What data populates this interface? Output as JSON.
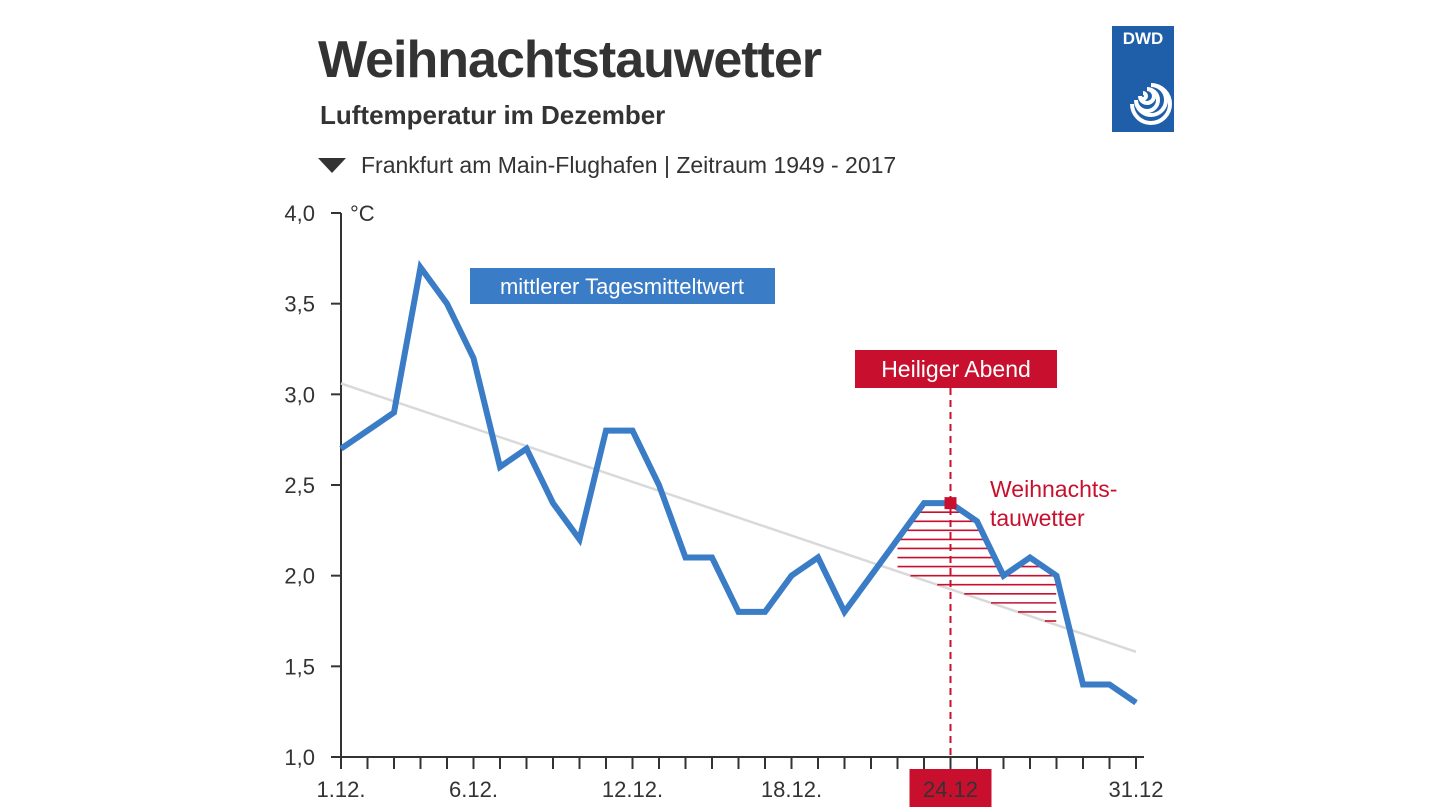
{
  "header": {
    "title": "Weihnachtstauwetter",
    "subtitle": "Luftemperatur im Dezember",
    "location": "Frankfurt am Main-Flughafen | Zeitraum 1949 - 2017",
    "logo_text": "DWD"
  },
  "colors": {
    "series": "#3a7cc6",
    "trend": "#d9d9d9",
    "highlight": "#c8102e",
    "text": "#333333",
    "logo": "#1f5ea8"
  },
  "chart_data": {
    "type": "line",
    "title": "Weihnachtstauwetter",
    "subtitle": "Luftemperatur im Dezember",
    "ylabel": "°C",
    "ylim": [
      1.0,
      4.0
    ],
    "yticks": [
      1.0,
      1.5,
      2.0,
      2.5,
      3.0,
      3.5,
      4.0
    ],
    "ytick_labels": [
      "1,0",
      "1,5",
      "2,0",
      "2,5",
      "3,0",
      "3,5",
      "4,0"
    ],
    "xlim": [
      1,
      31
    ],
    "xticks_labeled": [
      1,
      6,
      12,
      18,
      24,
      31
    ],
    "xtick_labels": [
      "1.12.",
      "6.12.",
      "12.12.",
      "18.12.",
      "24.12",
      "31.12"
    ],
    "highlighted_xtick": 24,
    "series": [
      {
        "name": "mittlerer Tagesmitteltwert",
        "x": [
          1,
          2,
          3,
          4,
          5,
          6,
          7,
          8,
          9,
          10,
          11,
          12,
          13,
          14,
          15,
          16,
          17,
          18,
          19,
          20,
          21,
          22,
          23,
          24,
          25,
          26,
          27,
          28,
          29,
          30,
          31
        ],
        "values": [
          2.7,
          2.8,
          2.9,
          3.7,
          3.5,
          3.2,
          2.6,
          2.7,
          2.4,
          2.2,
          2.8,
          2.8,
          2.5,
          2.1,
          2.1,
          1.8,
          1.8,
          2.0,
          2.1,
          1.8,
          2.0,
          2.2,
          2.4,
          2.4,
          2.3,
          2.0,
          2.1,
          2.0,
          1.4,
          1.4,
          1.3
        ]
      }
    ],
    "trend": {
      "x": [
        1,
        31
      ],
      "values": [
        3.06,
        1.58
      ]
    },
    "annotations": {
      "series_label": "mittlerer Tagesmitteltwert",
      "event_label": "Heiliger Abend",
      "event_x": 24,
      "event_point": {
        "x": 24,
        "y": 2.4
      },
      "region_label_line1": "Weihnachts-",
      "region_label_line2": "tauwetter",
      "region_x": [
        22,
        28
      ]
    }
  }
}
